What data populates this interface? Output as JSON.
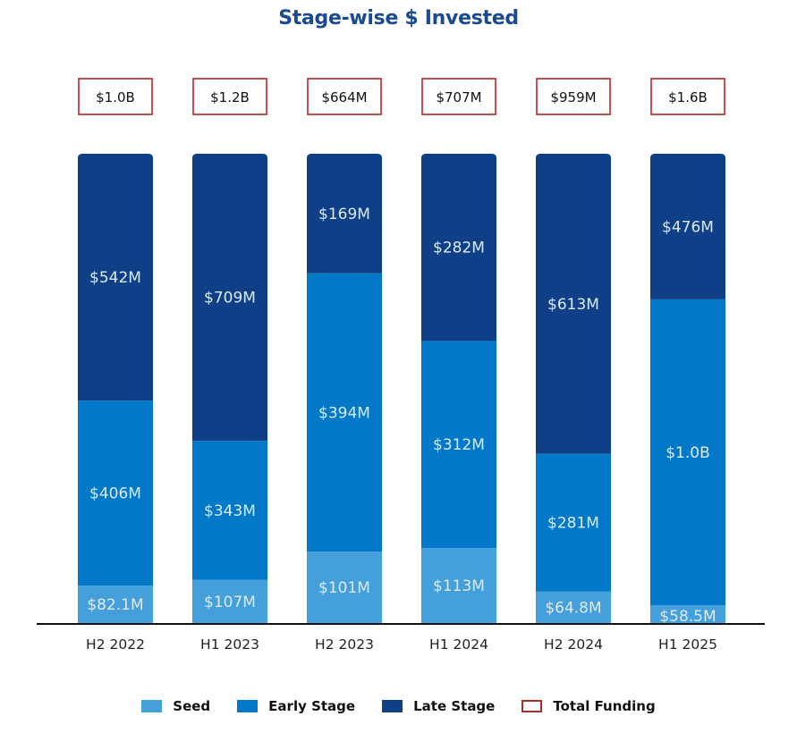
{
  "chart_data": {
    "type": "bar",
    "stacked": true,
    "normalized_100_percent": true,
    "title": "Stage-wise $ Invested",
    "xlabel": "",
    "ylabel": "",
    "unit": "$M",
    "categories": [
      "H2 2022",
      "H1 2023",
      "H2 2023",
      "H1 2024",
      "H2 2024",
      "H1 2025"
    ],
    "series": [
      {
        "name": "Seed",
        "color": "#449FDB",
        "values": [
          82.1,
          107,
          101,
          113,
          64.8,
          58.5
        ],
        "labels": [
          "$82.1M",
          "$107M",
          "$101M",
          "$113M",
          "$64.8M",
          "$58.5M"
        ]
      },
      {
        "name": "Early Stage",
        "color": "#0179C8",
        "values": [
          406,
          343,
          394,
          312,
          281,
          1000
        ],
        "labels": [
          "$406M",
          "$343M",
          "$394M",
          "$312M",
          "$281M",
          "$1.0B"
        ]
      },
      {
        "name": "Late Stage",
        "color": "#0F3F87",
        "values": [
          542,
          709,
          169,
          282,
          613,
          476
        ],
        "labels": [
          "$542M",
          "$709M",
          "$169M",
          "$282M",
          "$613M",
          "$476M"
        ]
      }
    ],
    "totals": {
      "name": "Total Funding",
      "color": "#B02A2A",
      "labels": [
        "$1.0B",
        "$1.2B",
        "$664M",
        "$707M",
        "$959M",
        "$1.6B"
      ]
    },
    "legend": {
      "position": "bottom",
      "entries": [
        "Seed",
        "Early Stage",
        "Late Stage",
        "Total Funding"
      ]
    },
    "grid": false,
    "y_axis_visible": false
  }
}
